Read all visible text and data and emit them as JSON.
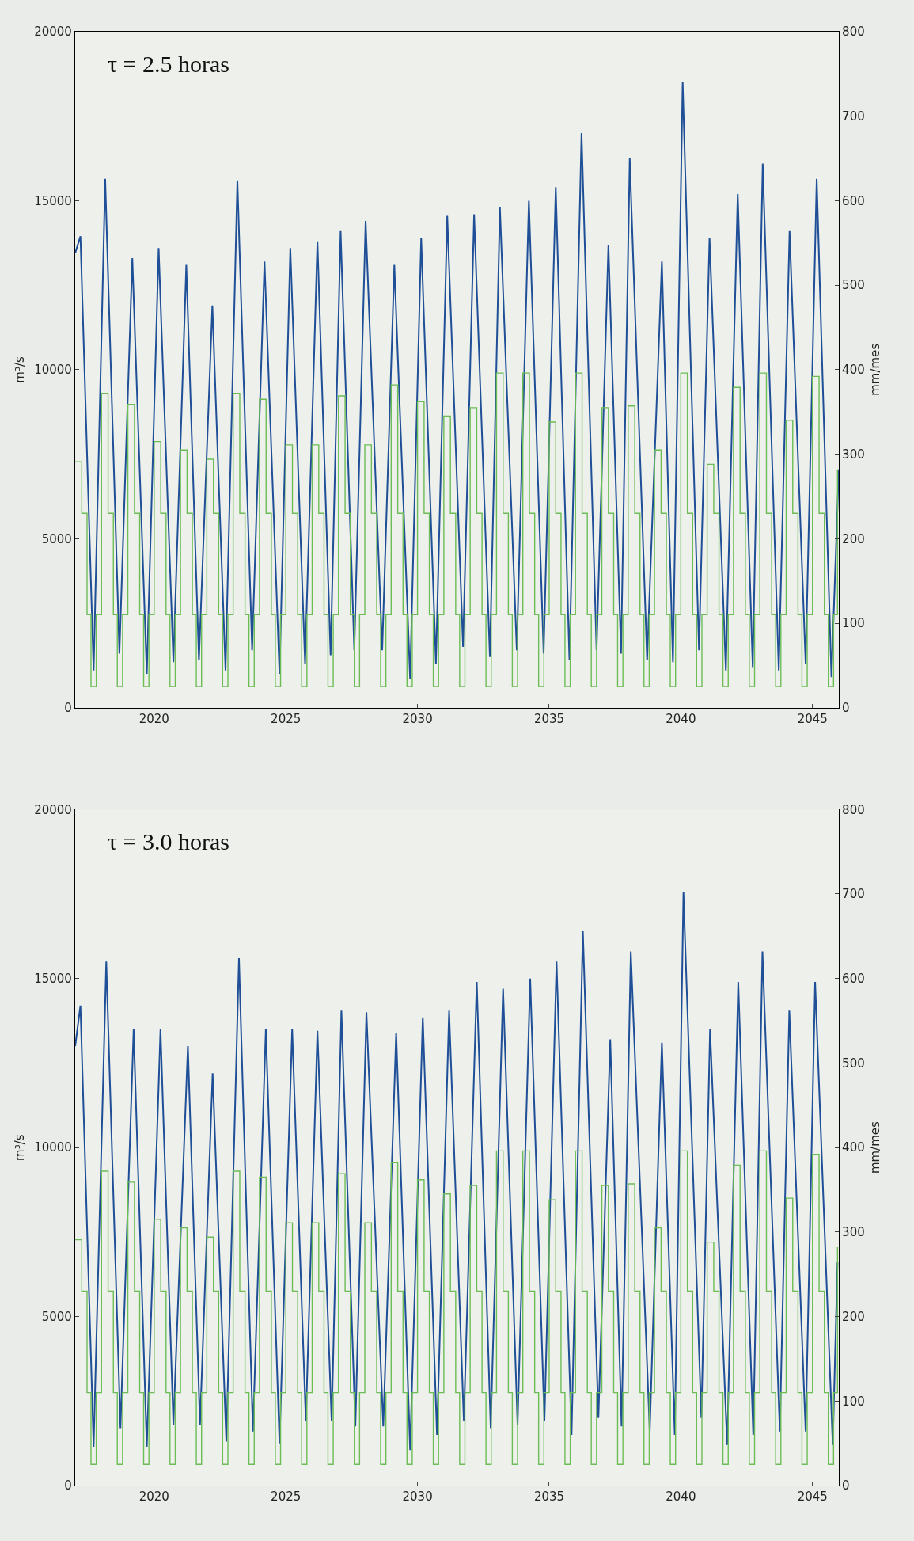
{
  "chart_data": [
    {
      "type": "line",
      "title": "τ = 2.5 horas",
      "ylabel": "m³/s",
      "y2label": "mm/mes",
      "xlim": [
        2017,
        2046
      ],
      "xticks": [
        2020,
        2025,
        2030,
        2035,
        2040,
        2045
      ],
      "ylim": [
        0,
        20000
      ],
      "yticks": [
        0,
        5000,
        10000,
        15000,
        20000
      ],
      "y2lim": [
        0,
        800
      ],
      "y2ticks": [
        0,
        100,
        200,
        300,
        400,
        500,
        600,
        700,
        800
      ],
      "series": [
        {
          "color": "#1f4f96",
          "axis": "y",
          "x": [
            2017.0,
            2017.2,
            2017.7,
            2018.14,
            2018.68,
            2019.17,
            2019.72,
            2020.17,
            2020.73,
            2021.22,
            2021.7,
            2022.21,
            2022.71,
            2023.16,
            2023.72,
            2024.19,
            2024.76,
            2025.17,
            2025.73,
            2026.2,
            2026.7,
            2027.08,
            2027.6,
            2028.03,
            2028.66,
            2029.12,
            2029.72,
            2030.14,
            2030.7,
            2031.13,
            2031.73,
            2032.15,
            2032.75,
            2033.13,
            2033.77,
            2034.23,
            2034.79,
            2035.25,
            2035.77,
            2036.23,
            2036.8,
            2037.25,
            2037.73,
            2038.06,
            2038.72,
            2039.28,
            2039.7,
            2040.07,
            2040.69,
            2041.09,
            2041.71,
            2042.16,
            2042.73,
            2043.11,
            2043.72,
            2044.13,
            2044.74,
            2045.16,
            2045.72,
            2046.0
          ],
          "values": [
            13450,
            13950,
            1100,
            15650,
            1600,
            13300,
            1000,
            13600,
            1350,
            13100,
            1400,
            11900,
            1100,
            15600,
            1700,
            13200,
            1000,
            13600,
            1300,
            13800,
            1550,
            14100,
            1700,
            14400,
            1700,
            13100,
            850,
            13900,
            1300,
            14550,
            1800,
            14600,
            1500,
            14800,
            1700,
            15000,
            1600,
            15400,
            1400,
            17000,
            1700,
            13700,
            1600,
            16250,
            1400,
            13200,
            1350,
            18500,
            1700,
            13900,
            1100,
            15200,
            1200,
            16100,
            1100,
            14100,
            1300,
            15650,
            900,
            7050
          ]
        },
        {
          "type": "step",
          "color": "#6cbd55",
          "axis": "y2",
          "x": [
            2017.0,
            2017.25,
            2017.45,
            2017.6,
            2017.8,
            2018.0,
            2018.25,
            2018.45,
            2018.6,
            2018.8,
            2019.0,
            2019.25,
            2019.45,
            2019.6,
            2019.8,
            2020.0,
            2020.25,
            2020.45,
            2020.6,
            2020.8,
            2021.0,
            2021.25,
            2021.45,
            2021.6,
            2021.8,
            2022.0,
            2022.25,
            2022.45,
            2022.6,
            2022.8,
            2023.0,
            2023.25,
            2023.45,
            2023.6,
            2023.8,
            2024.0,
            2024.25,
            2024.45,
            2024.6,
            2024.8,
            2025.0,
            2025.25,
            2025.45,
            2025.6,
            2025.8,
            2026.0,
            2026.25,
            2026.45,
            2026.6,
            2026.8,
            2027.0,
            2027.25,
            2027.45,
            2027.6,
            2027.8,
            2028.0,
            2028.25,
            2028.45,
            2028.6,
            2028.8,
            2029.0,
            2029.25,
            2029.45,
            2029.6,
            2029.8,
            2030.0,
            2030.25,
            2030.45,
            2030.6,
            2030.8,
            2031.0,
            2031.25,
            2031.45,
            2031.6,
            2031.8,
            2032.0,
            2032.25,
            2032.45,
            2032.6,
            2032.8,
            2033.0,
            2033.25,
            2033.45,
            2033.6,
            2033.8,
            2034.0,
            2034.25,
            2034.45,
            2034.6,
            2034.8,
            2035.0,
            2035.25,
            2035.45,
            2035.6,
            2035.8,
            2036.0,
            2036.25,
            2036.45,
            2036.6,
            2036.8,
            2037.0,
            2037.25,
            2037.45,
            2037.6,
            2037.8,
            2038.0,
            2038.25,
            2038.45,
            2038.6,
            2038.8,
            2039.0,
            2039.25,
            2039.45,
            2039.6,
            2039.8,
            2040.0,
            2040.25,
            2040.45,
            2040.6,
            2040.8,
            2041.0,
            2041.25,
            2041.45,
            2041.6,
            2041.8,
            2042.0,
            2042.25,
            2042.45,
            2042.6,
            2042.8,
            2043.0,
            2043.25,
            2043.45,
            2043.6,
            2043.8,
            2044.0,
            2044.25,
            2044.45,
            2044.6,
            2044.8,
            2045.0,
            2045.25,
            2045.45,
            2045.6,
            2045.8,
            2045.95
          ],
          "values": [
            291,
            230,
            110,
            25,
            110,
            372,
            230,
            110,
            25,
            110,
            359,
            230,
            110,
            25,
            110,
            315,
            230,
            110,
            25,
            110,
            305,
            230,
            110,
            25,
            110,
            294,
            230,
            110,
            25,
            110,
            372,
            230,
            110,
            25,
            110,
            365,
            230,
            110,
            25,
            110,
            311,
            230,
            110,
            25,
            110,
            311,
            230,
            110,
            25,
            110,
            369,
            230,
            110,
            25,
            110,
            311,
            230,
            110,
            25,
            110,
            382,
            230,
            110,
            25,
            110,
            362,
            230,
            110,
            25,
            110,
            345,
            230,
            110,
            25,
            110,
            355,
            230,
            110,
            25,
            110,
            396,
            230,
            110,
            25,
            110,
            396,
            230,
            110,
            25,
            110,
            338,
            230,
            110,
            25,
            110,
            396,
            230,
            110,
            25,
            110,
            355,
            230,
            110,
            25,
            110,
            357,
            230,
            110,
            25,
            110,
            305,
            230,
            110,
            25,
            110,
            396,
            230,
            110,
            25,
            110,
            288,
            230,
            110,
            25,
            110,
            379,
            230,
            110,
            25,
            110,
            396,
            230,
            110,
            25,
            110,
            340,
            230,
            110,
            25,
            110,
            392,
            230,
            110,
            25,
            110,
            282
          ]
        }
      ]
    },
    {
      "type": "line",
      "title": "τ = 3.0 horas",
      "ylabel": "m³/s",
      "y2label": "mm/mes",
      "xlim": [
        2017,
        2046
      ],
      "xticks": [
        2020,
        2025,
        2030,
        2035,
        2040,
        2045
      ],
      "ylim": [
        0,
        20000
      ],
      "yticks": [
        0,
        5000,
        10000,
        15000,
        20000
      ],
      "y2lim": [
        0,
        800
      ],
      "y2ticks": [
        0,
        100,
        200,
        300,
        400,
        500,
        600,
        700,
        800
      ],
      "series": [
        {
          "color": "#1f4f96",
          "axis": "y",
          "x": [
            2017.0,
            2017.2,
            2017.7,
            2018.18,
            2018.72,
            2019.22,
            2019.72,
            2020.24,
            2020.73,
            2021.28,
            2021.74,
            2022.22,
            2022.74,
            2023.22,
            2023.75,
            2024.24,
            2024.76,
            2025.24,
            2025.76,
            2026.2,
            2026.74,
            2027.11,
            2027.64,
            2028.06,
            2028.7,
            2029.19,
            2029.72,
            2030.2,
            2030.74,
            2031.2,
            2031.76,
            2032.25,
            2032.78,
            2033.25,
            2033.8,
            2034.28,
            2034.82,
            2035.28,
            2035.85,
            2036.28,
            2036.87,
            2037.32,
            2037.75,
            2038.1,
            2038.82,
            2039.28,
            2039.77,
            2040.1,
            2040.78,
            2041.11,
            2041.76,
            2042.18,
            2042.75,
            2043.1,
            2043.76,
            2044.12,
            2044.74,
            2045.1,
            2045.77,
            2045.95
          ],
          "values": [
            13000,
            14200,
            1150,
            15500,
            1700,
            13500,
            1150,
            13500,
            1800,
            13000,
            1800,
            12200,
            1300,
            15600,
            1600,
            13500,
            1250,
            13500,
            1900,
            13450,
            1900,
            14050,
            1750,
            14000,
            1750,
            13400,
            1050,
            13850,
            1500,
            14050,
            1900,
            14900,
            1700,
            14700,
            1800,
            15000,
            1900,
            15500,
            1500,
            16400,
            2000,
            13200,
            1750,
            15800,
            1600,
            13100,
            1500,
            17550,
            2000,
            13500,
            1200,
            14900,
            1500,
            15800,
            1600,
            14050,
            1600,
            14900,
            1200,
            6600
          ]
        },
        {
          "type": "step",
          "color": "#6cbd55",
          "axis": "y2",
          "x": [
            2017.0,
            2017.25,
            2017.45,
            2017.6,
            2017.8,
            2018.0,
            2018.25,
            2018.45,
            2018.6,
            2018.8,
            2019.0,
            2019.25,
            2019.45,
            2019.6,
            2019.8,
            2020.0,
            2020.25,
            2020.45,
            2020.6,
            2020.8,
            2021.0,
            2021.25,
            2021.45,
            2021.6,
            2021.8,
            2022.0,
            2022.25,
            2022.45,
            2022.6,
            2022.8,
            2023.0,
            2023.25,
            2023.45,
            2023.6,
            2023.8,
            2024.0,
            2024.25,
            2024.45,
            2024.6,
            2024.8,
            2025.0,
            2025.25,
            2025.45,
            2025.6,
            2025.8,
            2026.0,
            2026.25,
            2026.45,
            2026.6,
            2026.8,
            2027.0,
            2027.25,
            2027.45,
            2027.6,
            2027.8,
            2028.0,
            2028.25,
            2028.45,
            2028.6,
            2028.8,
            2029.0,
            2029.25,
            2029.45,
            2029.6,
            2029.8,
            2030.0,
            2030.25,
            2030.45,
            2030.6,
            2030.8,
            2031.0,
            2031.25,
            2031.45,
            2031.6,
            2031.8,
            2032.0,
            2032.25,
            2032.45,
            2032.6,
            2032.8,
            2033.0,
            2033.25,
            2033.45,
            2033.6,
            2033.8,
            2034.0,
            2034.25,
            2034.45,
            2034.6,
            2034.8,
            2035.0,
            2035.25,
            2035.45,
            2035.6,
            2035.8,
            2036.0,
            2036.25,
            2036.45,
            2036.6,
            2036.8,
            2037.0,
            2037.25,
            2037.45,
            2037.6,
            2037.8,
            2038.0,
            2038.25,
            2038.45,
            2038.6,
            2038.8,
            2039.0,
            2039.25,
            2039.45,
            2039.6,
            2039.8,
            2040.0,
            2040.25,
            2040.45,
            2040.6,
            2040.8,
            2041.0,
            2041.25,
            2041.45,
            2041.6,
            2041.8,
            2042.0,
            2042.25,
            2042.45,
            2042.6,
            2042.8,
            2043.0,
            2043.25,
            2043.45,
            2043.6,
            2043.8,
            2044.0,
            2044.25,
            2044.45,
            2044.6,
            2044.8,
            2045.0,
            2045.25,
            2045.45,
            2045.6,
            2045.8,
            2045.95
          ],
          "values": [
            291,
            230,
            110,
            25,
            110,
            372,
            230,
            110,
            25,
            110,
            359,
            230,
            110,
            25,
            110,
            315,
            230,
            110,
            25,
            110,
            305,
            230,
            110,
            25,
            110,
            294,
            230,
            110,
            25,
            110,
            372,
            230,
            110,
            25,
            110,
            365,
            230,
            110,
            25,
            110,
            311,
            230,
            110,
            25,
            110,
            311,
            230,
            110,
            25,
            110,
            369,
            230,
            110,
            25,
            110,
            311,
            230,
            110,
            25,
            110,
            382,
            230,
            110,
            25,
            110,
            362,
            230,
            110,
            25,
            110,
            345,
            230,
            110,
            25,
            110,
            355,
            230,
            110,
            25,
            110,
            396,
            230,
            110,
            25,
            110,
            396,
            230,
            110,
            25,
            110,
            338,
            230,
            110,
            25,
            110,
            396,
            230,
            110,
            25,
            110,
            355,
            230,
            110,
            25,
            110,
            357,
            230,
            110,
            25,
            110,
            305,
            230,
            110,
            25,
            110,
            396,
            230,
            110,
            25,
            110,
            288,
            230,
            110,
            25,
            110,
            379,
            230,
            110,
            25,
            110,
            396,
            230,
            110,
            25,
            110,
            340,
            230,
            110,
            25,
            110,
            392,
            230,
            110,
            25,
            110,
            282
          ]
        }
      ]
    }
  ]
}
